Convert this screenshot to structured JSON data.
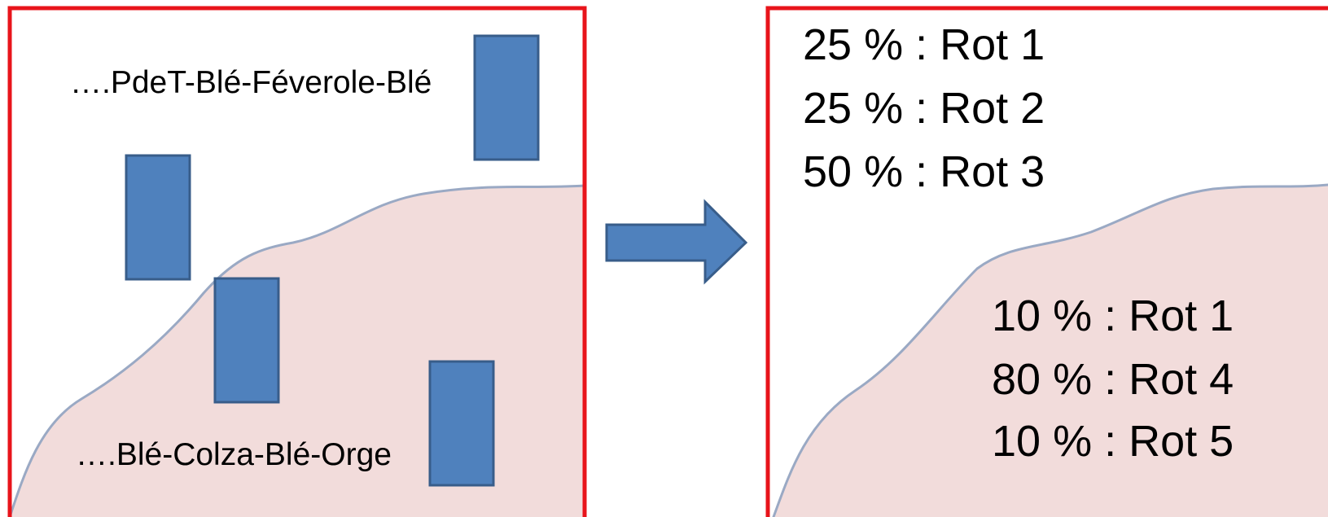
{
  "left_panel": {
    "top_label": "….PdeT-Blé-Féverole-Blé",
    "bottom_label": "….Blé-Colza-Blé-Orge"
  },
  "right_panel": {
    "top_lines": [
      "25 % : Rot 1",
      "25 % : Rot 2",
      "50 % : Rot 3"
    ],
    "bottom_lines": [
      "10 % : Rot 1",
      "80 % : Rot 4",
      "10 % : Rot 5"
    ]
  },
  "colors": {
    "frame": "#e8141b",
    "zone_fill": "#f2dcdb",
    "zone_line": "#9aa9c4",
    "block_fill": "#4f81bd",
    "block_stroke": "#385d8a"
  }
}
